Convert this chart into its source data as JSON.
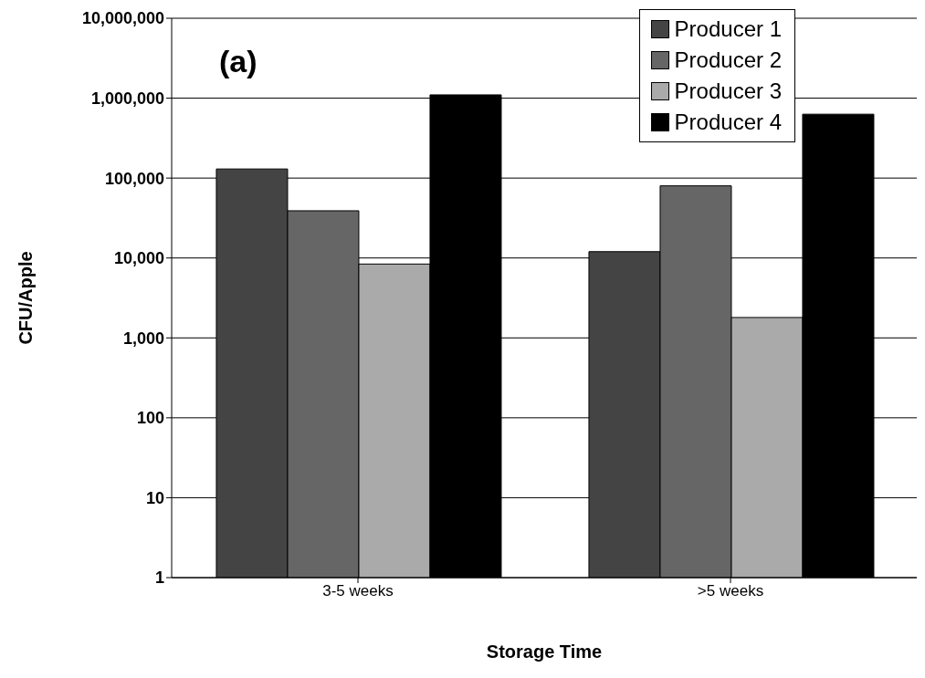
{
  "chart_data": {
    "type": "bar",
    "xlabel": "Storage Time",
    "ylabel": "CFU/Apple",
    "annotations": [
      "(a)"
    ],
    "categories": [
      "3-5 weeks",
      ">5 weeks"
    ],
    "series": [
      {
        "name": "Producer 1",
        "color": "#444444",
        "values": [
          130000,
          12000
        ]
      },
      {
        "name": "Producer 2",
        "color": "#666666",
        "values": [
          39000,
          80000
        ]
      },
      {
        "name": "Producer 3",
        "color": "#aaaaaa",
        "values": [
          8400,
          1800
        ]
      },
      {
        "name": "Producer 4",
        "color": "#000000",
        "values": [
          1100000,
          630000
        ]
      }
    ],
    "log": true,
    "ylim": [
      1,
      10000000
    ],
    "yticks": [
      1,
      10,
      100,
      {
        "value": 1000,
        "label": "1,000"
      },
      {
        "value": 10000,
        "label": "10,000"
      },
      {
        "value": 100000,
        "label": "100,000"
      },
      {
        "value": 1000000,
        "label": "1,000,000"
      },
      {
        "value": 10000000,
        "label": "10,000,000"
      }
    ],
    "grid": "y",
    "legend": "top right"
  }
}
